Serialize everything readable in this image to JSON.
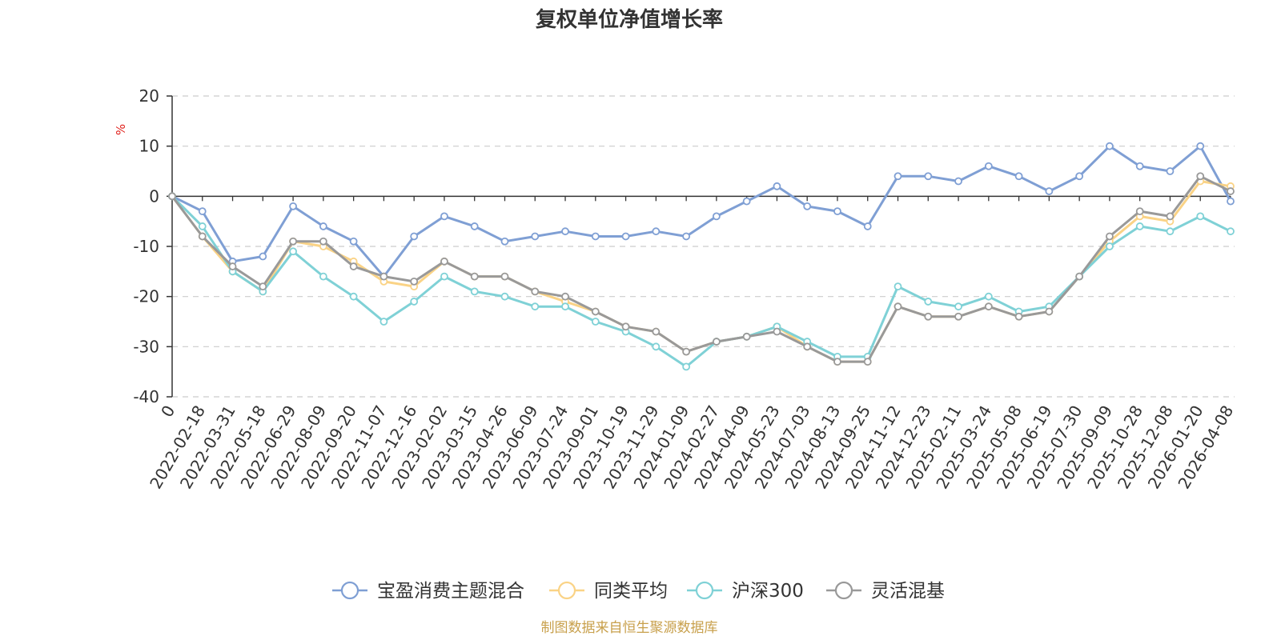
{
  "title": "复权单位净值增长率",
  "source": "制图数据来自恒生聚源数据库",
  "chart_data": {
    "type": "line",
    "title": "复权单位净值增长率",
    "ylabel": "%",
    "ylim": [
      -40,
      20
    ],
    "yticks": [
      20,
      10,
      0,
      -10,
      -20,
      -30,
      -40
    ],
    "grid": true,
    "legend_position": "bottom-center",
    "categories": [
      "0",
      "2022-02-18",
      "2022-03-31",
      "2022-05-18",
      "2022-06-29",
      "2022-08-09",
      "2022-09-20",
      "2022-11-07",
      "2022-12-16",
      "2023-02-02",
      "2023-03-15",
      "2023-04-26",
      "2023-06-09",
      "2023-07-24",
      "2023-09-01",
      "2023-10-19",
      "2023-11-29",
      "2024-01-09",
      "2024-02-27",
      "2024-04-09",
      "2024-05-23",
      "2024-07-03",
      "2024-08-13",
      "2024-09-25",
      "2024-11-12",
      "2024-12-23",
      "2025-02-11",
      "2025-03-24",
      "2025-05-08",
      "2025-06-19",
      "2025-07-30",
      "2025-09-09",
      "2025-10-28",
      "2025-12-08",
      "2026-01-20",
      "2026-04-08"
    ],
    "series": [
      {
        "name": "宝盈消费主题混合",
        "color": "#7f9fd4",
        "values": [
          0,
          -3,
          -13,
          -12,
          -2,
          -6,
          -9,
          -16,
          -8,
          -4,
          -6,
          -9,
          -8,
          -7,
          -8,
          -8,
          -7,
          -8,
          -4,
          -1,
          2,
          -2,
          -3,
          -6,
          4,
          4,
          3,
          6,
          4,
          1,
          4,
          10,
          6,
          5,
          10,
          -1
        ]
      },
      {
        "name": "同类平均",
        "color": "#fad386",
        "values": [
          0,
          -8,
          -15,
          -19,
          -9,
          -10,
          -13,
          -17,
          -18,
          -13,
          -16,
          -16,
          -19,
          -21,
          -23,
          -26,
          -27,
          -31,
          -29,
          -28,
          -26,
          -30,
          -33,
          -33,
          -22,
          -24,
          -24,
          -22,
          -24,
          -23,
          -16,
          -9,
          -4,
          -5,
          3,
          2
        ]
      },
      {
        "name": "沪深300",
        "color": "#7fd1d6",
        "values": [
          0,
          -6,
          -15,
          -19,
          -11,
          -16,
          -20,
          -25,
          -21,
          -16,
          -19,
          -20,
          -22,
          -22,
          -25,
          -27,
          -30,
          -34,
          -29,
          -28,
          -26,
          -29,
          -32,
          -32,
          -18,
          -21,
          -22,
          -20,
          -23,
          -22,
          -16,
          -10,
          -6,
          -7,
          -4,
          -7
        ]
      },
      {
        "name": "灵活混基",
        "color": "#999999",
        "values": [
          0,
          -8,
          -14,
          -18,
          -9,
          -9,
          -14,
          -16,
          -17,
          -13,
          -16,
          -16,
          -19,
          -20,
          -23,
          -26,
          -27,
          -31,
          -29,
          -28,
          -27,
          -30,
          -33,
          -33,
          -22,
          -24,
          -24,
          -22,
          -24,
          -23,
          -16,
          -8,
          -3,
          -4,
          4,
          1
        ]
      }
    ]
  }
}
